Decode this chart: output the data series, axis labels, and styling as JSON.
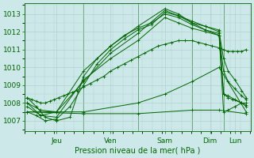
{
  "bg_color": "#cce8e8",
  "grid_color": "#aacccc",
  "line_color": "#006600",
  "xlabel": "Pression niveau de la mer( hPa )",
  "ylim": [
    1006.4,
    1013.6
  ],
  "yticks": [
    1007,
    1008,
    1009,
    1010,
    1011,
    1012,
    1013
  ],
  "day_positions": [
    0.14,
    0.38,
    0.62,
    0.82,
    0.93
  ],
  "day_labels": [
    "Jeu",
    "Ven",
    "Sam",
    "Dim",
    "Lun"
  ],
  "day_lines": [
    0.0,
    0.26,
    0.5,
    0.74,
    0.88,
    1.0
  ],
  "xlim": [
    0.0,
    1.0
  ],
  "series": [
    {
      "x": [
        0.01,
        0.03,
        0.05,
        0.07,
        0.09,
        0.11,
        0.13,
        0.15,
        0.17,
        0.19,
        0.21,
        0.23,
        0.26,
        0.29,
        0.32,
        0.35,
        0.38,
        0.41,
        0.44,
        0.47,
        0.5,
        0.53,
        0.56,
        0.59,
        0.62,
        0.65,
        0.68,
        0.71,
        0.74,
        0.77,
        0.8,
        0.83,
        0.86,
        0.88,
        0.9,
        0.92,
        0.94,
        0.96,
        0.98
      ],
      "y": [
        1008.3,
        1008.2,
        1008.1,
        1008.0,
        1008.0,
        1008.1,
        1008.2,
        1008.3,
        1008.4,
        1008.5,
        1008.6,
        1008.7,
        1008.9,
        1009.1,
        1009.3,
        1009.5,
        1009.8,
        1010.0,
        1010.2,
        1010.4,
        1010.6,
        1010.8,
        1011.0,
        1011.2,
        1011.3,
        1011.4,
        1011.5,
        1011.5,
        1011.5,
        1011.4,
        1011.3,
        1011.2,
        1011.1,
        1011.0,
        1010.9,
        1010.9,
        1010.9,
        1010.9,
        1011.0
      ]
    },
    {
      "x": [
        0.01,
        0.07,
        0.14,
        0.26,
        0.38,
        0.5,
        0.62,
        0.68,
        0.74,
        0.8,
        0.86,
        0.88,
        0.9,
        0.92,
        0.96,
        0.98
      ],
      "y": [
        1008.0,
        1007.3,
        1007.5,
        1009.8,
        1011.2,
        1012.3,
        1013.3,
        1013.0,
        1012.5,
        1012.3,
        1012.1,
        1008.5,
        1008.3,
        1008.2,
        1008.0,
        1007.9
      ]
    },
    {
      "x": [
        0.01,
        0.05,
        0.09,
        0.14,
        0.2,
        0.26,
        0.32,
        0.38,
        0.44,
        0.5,
        0.56,
        0.62,
        0.68,
        0.74,
        0.8,
        0.86,
        0.88,
        0.9,
        0.93,
        0.96,
        0.98
      ],
      "y": [
        1008.3,
        1007.8,
        1007.2,
        1007.0,
        1007.2,
        1009.5,
        1010.5,
        1011.2,
        1011.8,
        1012.2,
        1012.5,
        1013.0,
        1012.8,
        1012.4,
        1012.1,
        1011.9,
        1008.5,
        1008.4,
        1008.2,
        1008.0,
        1007.8
      ]
    },
    {
      "x": [
        0.01,
        0.05,
        0.09,
        0.14,
        0.2,
        0.26,
        0.32,
        0.38,
        0.44,
        0.5,
        0.56,
        0.62,
        0.68,
        0.74,
        0.8,
        0.86,
        0.88,
        0.9,
        0.93,
        0.96,
        0.98
      ],
      "y": [
        1007.5,
        1007.3,
        1007.0,
        1007.1,
        1007.8,
        1009.0,
        1010.2,
        1011.0,
        1011.6,
        1012.1,
        1012.4,
        1013.1,
        1012.9,
        1012.5,
        1012.1,
        1011.8,
        1009.8,
        1009.2,
        1008.8,
        1008.4,
        1008.2
      ]
    },
    {
      "x": [
        0.01,
        0.07,
        0.14,
        0.26,
        0.38,
        0.5,
        0.62,
        0.74,
        0.8,
        0.86,
        0.88,
        0.9,
        0.93,
        0.96,
        0.98
      ],
      "y": [
        1008.0,
        1007.6,
        1007.5,
        1009.2,
        1010.8,
        1011.9,
        1013.2,
        1012.6,
        1012.3,
        1012.0,
        1010.5,
        1009.8,
        1009.3,
        1008.7,
        1008.3
      ]
    },
    {
      "x": [
        0.01,
        0.07,
        0.14,
        0.26,
        0.38,
        0.5,
        0.62,
        0.68,
        0.74,
        0.8,
        0.86,
        0.88,
        0.9,
        0.93,
        0.96,
        0.98
      ],
      "y": [
        1007.8,
        1007.3,
        1007.2,
        1009.3,
        1010.5,
        1011.5,
        1012.8,
        1012.5,
        1012.2,
        1012.0,
        1011.8,
        1007.5,
        1007.6,
        1007.8,
        1008.0,
        1008.0
      ]
    },
    {
      "x": [
        0.01,
        0.26,
        0.5,
        0.62,
        0.74,
        0.86,
        0.98
      ],
      "y": [
        1007.5,
        1007.5,
        1008.0,
        1008.5,
        1009.2,
        1010.0,
        1007.5
      ]
    },
    {
      "x": [
        0.01,
        0.26,
        0.5,
        0.74,
        0.86,
        0.98
      ],
      "y": [
        1007.5,
        1007.4,
        1007.4,
        1007.6,
        1007.6,
        1007.4
      ]
    }
  ]
}
